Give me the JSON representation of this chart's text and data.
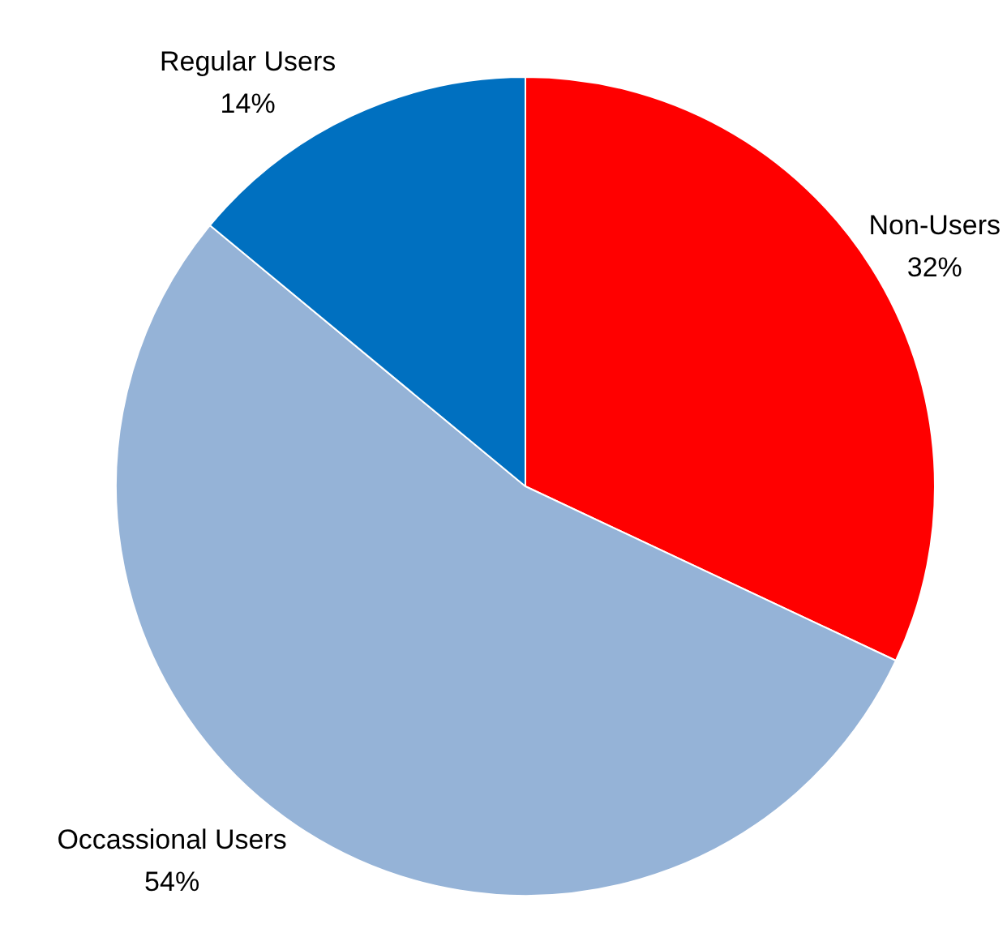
{
  "chart_data": {
    "type": "pie",
    "categories": [
      "Non-Users",
      "Occassional Users",
      "Regular Users"
    ],
    "values": [
      32,
      54,
      14
    ],
    "colors": [
      "#ff0000",
      "#95b3d7",
      "#0070c0"
    ],
    "value_labels": [
      "32%",
      "54%",
      "14%"
    ],
    "legend": false
  }
}
